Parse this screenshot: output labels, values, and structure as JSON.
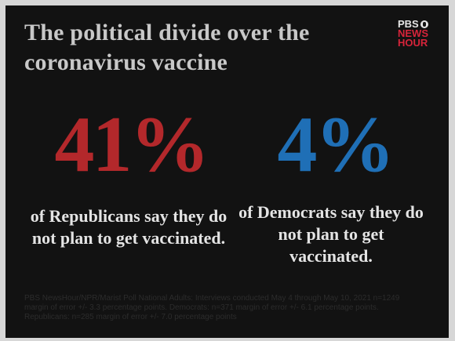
{
  "title": "The political divide over the coronavirus vaccine",
  "logo": {
    "line1": "PBS",
    "line2": "NEWS",
    "line3": "HOUR"
  },
  "stats": {
    "republicans": {
      "value": "41%",
      "description": "of Republicans say they do not plan to get vaccinated.",
      "color": "#b3282b"
    },
    "democrats": {
      "value": "4%",
      "description": "of Democrats say they do not plan to get vaccinated.",
      "color": "#1f6fb6"
    }
  },
  "source": "PBS NewsHour/NPR/Marist Poll National Adults: Interviews conducted May 4 through May 10, 2021 n=1249 margin of error +/- 3.3 percentage points. Democrats: n=371 margin of error +/- 6.1 percentage points. Republicans: n=285 margin of error +/- 7.0 percentage points"
}
